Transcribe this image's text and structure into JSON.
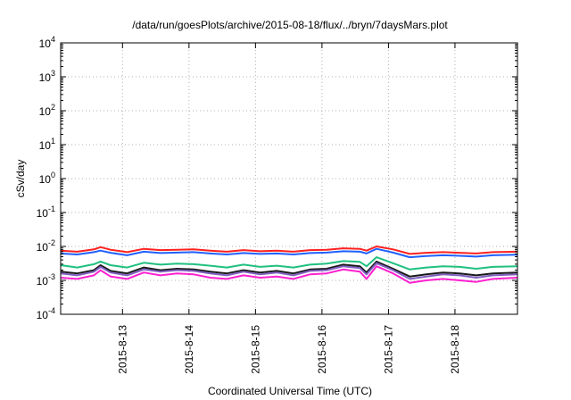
{
  "chart_data": {
    "type": "line",
    "title": "/data/run/goesPlots/archive/2015-08-18/flux/../bryn/7daysMars.plot",
    "xlabel": "Coordinated Universal Time (UTC)",
    "ylabel": "cSv/day",
    "yscale": "log",
    "ylim": [
      0.0001,
      10000
    ],
    "y_ticks": [
      {
        "base": "10",
        "exp": "-4"
      },
      {
        "base": "10",
        "exp": "-3"
      },
      {
        "base": "10",
        "exp": "-2"
      },
      {
        "base": "10",
        "exp": "-1"
      },
      {
        "base": "10",
        "exp": "0"
      },
      {
        "base": "10",
        "exp": "1"
      },
      {
        "base": "10",
        "exp": "2"
      },
      {
        "base": "10",
        "exp": "3"
      },
      {
        "base": "10",
        "exp": "4"
      }
    ],
    "x_range_days": [
      0,
      6.87
    ],
    "x_ticks": [
      {
        "label": "2015-8-13",
        "day": 0.93
      },
      {
        "label": "2015-8-14",
        "day": 1.93
      },
      {
        "label": "2015-8-15",
        "day": 2.93
      },
      {
        "label": "2015-8-16",
        "day": 3.93
      },
      {
        "label": "2015-8-17",
        "day": 4.93
      },
      {
        "label": "2015-8-18",
        "day": 5.93
      }
    ],
    "grid": true,
    "x_sample_days": [
      0,
      0.25,
      0.5,
      0.6,
      0.75,
      1.0,
      1.25,
      1.5,
      1.75,
      2.0,
      2.25,
      2.5,
      2.75,
      3.0,
      3.25,
      3.5,
      3.75,
      4.0,
      4.25,
      4.5,
      4.6,
      4.75,
      5.0,
      5.25,
      5.5,
      5.75,
      6.0,
      6.25,
      6.5,
      6.87
    ],
    "series": [
      {
        "color": "#ff2020",
        "values": [
          0.0075,
          0.007,
          0.0082,
          0.0095,
          0.008,
          0.0068,
          0.0085,
          0.0078,
          0.008,
          0.0082,
          0.0075,
          0.007,
          0.0078,
          0.0072,
          0.0075,
          0.007,
          0.0078,
          0.008,
          0.0088,
          0.0085,
          0.0075,
          0.01,
          0.0082,
          0.006,
          0.0065,
          0.0068,
          0.0065,
          0.0062,
          0.0068,
          0.007
        ]
      },
      {
        "color": "#2060ff",
        "values": [
          0.0062,
          0.0058,
          0.0068,
          0.0075,
          0.0065,
          0.0055,
          0.007,
          0.0064,
          0.0066,
          0.0068,
          0.0062,
          0.0058,
          0.0064,
          0.006,
          0.0062,
          0.0058,
          0.0064,
          0.0066,
          0.0072,
          0.007,
          0.0062,
          0.0085,
          0.0066,
          0.0048,
          0.0052,
          0.0055,
          0.0053,
          0.005,
          0.0055,
          0.0057
        ]
      },
      {
        "color": "#20c080",
        "values": [
          0.0028,
          0.0024,
          0.003,
          0.0036,
          0.0028,
          0.0024,
          0.0033,
          0.0029,
          0.0031,
          0.003,
          0.0027,
          0.0024,
          0.0029,
          0.0025,
          0.0027,
          0.0024,
          0.0029,
          0.0031,
          0.0037,
          0.0035,
          0.0026,
          0.0048,
          0.0032,
          0.0021,
          0.0024,
          0.0026,
          0.0025,
          0.0022,
          0.0025,
          0.0026
        ]
      },
      {
        "color": "#1a1a1a",
        "values": [
          0.0018,
          0.0016,
          0.002,
          0.0028,
          0.0019,
          0.0016,
          0.0024,
          0.002,
          0.0022,
          0.0021,
          0.0018,
          0.0016,
          0.002,
          0.0017,
          0.0019,
          0.0016,
          0.0021,
          0.0022,
          0.0029,
          0.0026,
          0.0017,
          0.0036,
          0.0022,
          0.0013,
          0.0015,
          0.0017,
          0.0016,
          0.0014,
          0.0016,
          0.0017
        ]
      },
      {
        "color": "#8060c0",
        "values": [
          0.0016,
          0.0014,
          0.0018,
          0.0025,
          0.0017,
          0.0014,
          0.0021,
          0.0018,
          0.002,
          0.0019,
          0.0016,
          0.0014,
          0.0018,
          0.0015,
          0.0017,
          0.0014,
          0.0019,
          0.002,
          0.0026,
          0.0023,
          0.0015,
          0.0032,
          0.002,
          0.0011,
          0.0013,
          0.0015,
          0.0014,
          0.0012,
          0.0014,
          0.0015
        ]
      },
      {
        "color": "#ff20d0",
        "values": [
          0.0012,
          0.0011,
          0.0014,
          0.002,
          0.0013,
          0.0011,
          0.0017,
          0.0014,
          0.0016,
          0.0015,
          0.0012,
          0.0011,
          0.0014,
          0.0012,
          0.0013,
          0.0011,
          0.0015,
          0.0016,
          0.0021,
          0.0018,
          0.0011,
          0.0026,
          0.0016,
          0.00085,
          0.001,
          0.0011,
          0.001,
          0.0009,
          0.0011,
          0.0012
        ]
      }
    ]
  }
}
